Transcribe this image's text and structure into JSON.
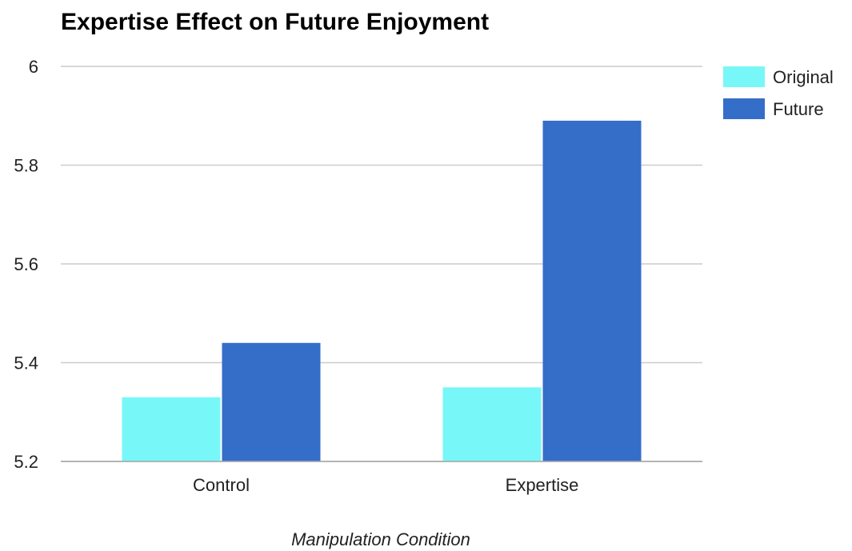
{
  "chart_data": {
    "type": "bar",
    "title": "Expertise Effect on Future Enjoyment",
    "xlabel": "Manipulation Condition",
    "ylabel": "",
    "categories": [
      "Control",
      "Expertise"
    ],
    "series": [
      {
        "name": "Original",
        "color": "#77f7f8",
        "values": [
          5.33,
          5.35
        ]
      },
      {
        "name": "Future",
        "color": "#356ec9",
        "values": [
          5.44,
          5.89
        ]
      }
    ],
    "ylim": [
      5.2,
      6
    ],
    "yticks": [
      5.2,
      5.4,
      5.6,
      5.8,
      6
    ],
    "ytick_labels": [
      "5.2",
      "5.4",
      "5.6",
      "5.8",
      "6"
    ],
    "grid": true,
    "legend_position": "right"
  }
}
